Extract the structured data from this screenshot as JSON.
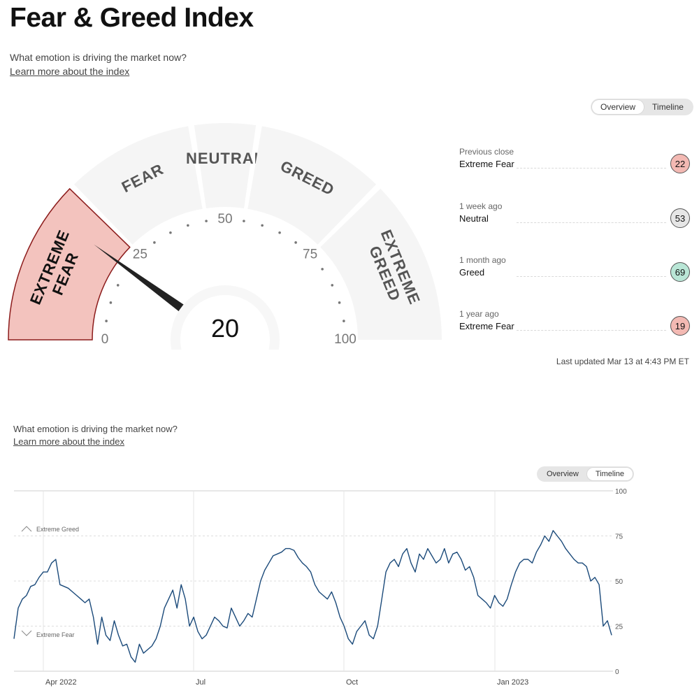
{
  "header": {
    "title": "Fear & Greed Index",
    "subtitle": "What emotion is driving the market now?",
    "learn_more": "Learn more about the index"
  },
  "toggle": {
    "overview": "Overview",
    "timeline": "Timeline",
    "active": "overview"
  },
  "gauge": {
    "value": 20,
    "value_label": "20",
    "segments": [
      {
        "name": "extreme-fear",
        "line1": "EXTREME",
        "line2": "FEAR",
        "from": 0,
        "to": 25
      },
      {
        "name": "fear",
        "line1": "FEAR",
        "line2": "",
        "from": 25,
        "to": 45
      },
      {
        "name": "neutral",
        "line1": "NEUTRAL",
        "line2": "",
        "from": 45,
        "to": 55
      },
      {
        "name": "greed",
        "line1": "GREED",
        "line2": "",
        "from": 55,
        "to": 75
      },
      {
        "name": "extreme-greed",
        "line1": "EXTREME",
        "line2": "GREED",
        "from": 75,
        "to": 100
      }
    ],
    "tick_labels": [
      "0",
      "25",
      "50",
      "75",
      "100"
    ],
    "colors": {
      "active": "#f3c3be",
      "active_border": "#8c1c1c",
      "inactive": "#f5f5f5",
      "needle": "#222222"
    }
  },
  "history": [
    {
      "when": "Previous close",
      "rating": "Extreme Fear",
      "value": "22",
      "color": "#f3b9b3"
    },
    {
      "when": "1 week ago",
      "rating": "Neutral",
      "value": "53",
      "color": "#e6e6e6"
    },
    {
      "when": "1 month ago",
      "rating": "Greed",
      "value": "69",
      "color": "#b9e6d6"
    },
    {
      "when": "1 year ago",
      "rating": "Extreme Fear",
      "value": "19",
      "color": "#f3b9b3"
    }
  ],
  "last_updated": "Last updated Mar 13 at 4:43 PM ET",
  "timeline": {
    "subtitle": "What emotion is driving the market now?",
    "learn_more": "Learn more about the index",
    "toggle": {
      "overview": "Overview",
      "timeline": "Timeline",
      "active": "timeline"
    },
    "band_labels": {
      "greed": "Extreme Greed",
      "fear": "Extreme Fear"
    }
  },
  "chart_data": {
    "type": "line",
    "y_ticks": [
      "100",
      "75",
      "50",
      "25",
      "0"
    ],
    "ylim": [
      0,
      100
    ],
    "x_ticks": [
      "Apr 2022",
      "Jul",
      "Oct",
      "Jan 2023"
    ],
    "line_color": "#1b4a7a",
    "series": [
      {
        "values": [
          18,
          35,
          40,
          42,
          47,
          48,
          52,
          55,
          55,
          60,
          62,
          48,
          47,
          46,
          44,
          42,
          40,
          38,
          40,
          30,
          15,
          30,
          20,
          17,
          28,
          20,
          14,
          15,
          8,
          5,
          15,
          10,
          12,
          14,
          18,
          25,
          35,
          40,
          45,
          35,
          48,
          40,
          25,
          30,
          22,
          18,
          20,
          25,
          30,
          28,
          25,
          24,
          35,
          30,
          25,
          28,
          32,
          30,
          40,
          50,
          56,
          60,
          64,
          65,
          66,
          68,
          68,
          67,
          63,
          60,
          58,
          55,
          48,
          44,
          42,
          40,
          44,
          38,
          30,
          25,
          18,
          15,
          22,
          25,
          28,
          20,
          18,
          25,
          40,
          55,
          60,
          62,
          58,
          65,
          68,
          60,
          55,
          65,
          62,
          68,
          64,
          60,
          62,
          68,
          60,
          65,
          66,
          62,
          56,
          58,
          52,
          42,
          40,
          38,
          35,
          42,
          38,
          36,
          40,
          48,
          55,
          60,
          62,
          62,
          60,
          66,
          70,
          75,
          72,
          78,
          75,
          72,
          68,
          65,
          62,
          60,
          60,
          58,
          50,
          52,
          48,
          25,
          28,
          20
        ]
      }
    ]
  }
}
